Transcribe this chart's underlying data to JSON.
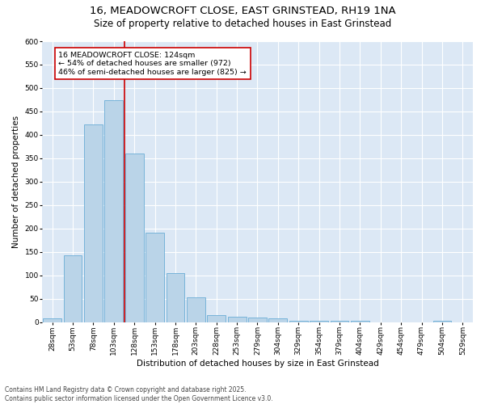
{
  "title_line1": "16, MEADOWCROFT CLOSE, EAST GRINSTEAD, RH19 1NA",
  "title_line2": "Size of property relative to detached houses in East Grinstead",
  "xlabel": "Distribution of detached houses by size in East Grinstead",
  "ylabel": "Number of detached properties",
  "footnote": "Contains HM Land Registry data © Crown copyright and database right 2025.\nContains public sector information licensed under the Open Government Licence v3.0.",
  "bar_labels": [
    "28sqm",
    "53sqm",
    "78sqm",
    "103sqm",
    "128sqm",
    "153sqm",
    "178sqm",
    "203sqm",
    "228sqm",
    "253sqm",
    "279sqm",
    "304sqm",
    "329sqm",
    "354sqm",
    "379sqm",
    "404sqm",
    "429sqm",
    "454sqm",
    "479sqm",
    "504sqm",
    "529sqm"
  ],
  "bar_values": [
    8,
    143,
    423,
    474,
    360,
    191,
    105,
    53,
    15,
    12,
    10,
    9,
    4,
    4,
    3,
    3,
    0,
    0,
    0,
    4,
    0
  ],
  "bar_color": "#bad4e8",
  "bar_edge_color": "#6aacd6",
  "vline_x": 3.5,
  "vline_color": "#cc0000",
  "annotation_text": "16 MEADOWCROFT CLOSE: 124sqm\n← 54% of detached houses are smaller (972)\n46% of semi-detached houses are larger (825) →",
  "annotation_box_color": "#ffffff",
  "annotation_box_edge_color": "#cc0000",
  "ylim": [
    0,
    600
  ],
  "yticks": [
    0,
    50,
    100,
    150,
    200,
    250,
    300,
    350,
    400,
    450,
    500,
    550,
    600
  ],
  "bg_color": "#dce8f5",
  "fig_color": "#ffffff",
  "title_fontsize": 9.5,
  "subtitle_fontsize": 8.5,
  "axis_label_fontsize": 7.5,
  "tick_fontsize": 6.5,
  "annotation_fontsize": 6.8,
  "footnote_fontsize": 5.5
}
